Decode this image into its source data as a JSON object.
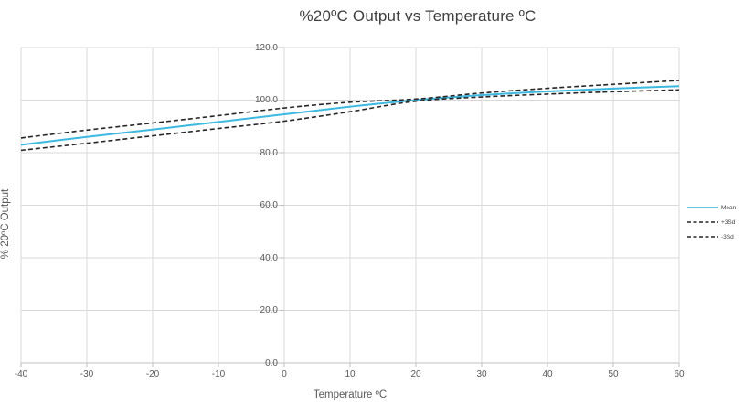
{
  "chart_data": {
    "type": "line",
    "title": "%20ºC Output vs Temperature ºC",
    "xlabel": "Temperature ºC",
    "ylabel": "% 20ºC Output",
    "x": [
      -40,
      -30,
      -20,
      -10,
      0,
      10,
      20,
      30,
      40,
      50,
      60
    ],
    "series": [
      {
        "id": "mean",
        "name": "Mean",
        "color": "#3cb9e1",
        "dash": "",
        "width": 2,
        "values": [
          83.0,
          86.0,
          88.8,
          91.7,
          94.6,
          97.5,
          100.0,
          101.9,
          103.3,
          104.4,
          105.3
        ]
      },
      {
        "id": "plus-3sd",
        "name": "+3Sd",
        "color": "#262626",
        "dash": "5 3",
        "width": 1.6,
        "values": [
          85.6,
          88.6,
          91.3,
          94.1,
          97.0,
          99.2,
          100.4,
          102.7,
          104.5,
          106.0,
          107.5
        ]
      },
      {
        "id": "minus-3sd",
        "name": "-3Sd",
        "color": "#262626",
        "dash": "5 3",
        "width": 1.6,
        "values": [
          80.9,
          83.6,
          86.4,
          89.2,
          92.0,
          95.6,
          99.6,
          101.2,
          102.3,
          103.2,
          103.9
        ]
      }
    ],
    "xlim": [
      -40,
      60
    ],
    "ylim": [
      0,
      120
    ],
    "x_ticks": {
      "values": [
        -40,
        -30,
        -20,
        -10,
        0,
        10,
        20,
        30,
        40,
        50,
        60
      ],
      "labels": [
        "-40",
        "-30",
        "-20",
        "-10",
        "0",
        "10",
        "20",
        "30",
        "40",
        "50",
        "60"
      ]
    },
    "y_ticks": {
      "values": [
        0,
        20,
        40,
        60,
        80,
        100,
        120
      ],
      "labels": [
        "0.0",
        "20.0",
        "40.0",
        "60.0",
        "80.0",
        "100.0",
        "120.0"
      ]
    },
    "grid": true,
    "legend_position": "right",
    "value_axis_at_x": 0
  },
  "colors": {
    "grid": "#d9d9d9",
    "axis": "#bfbfbf",
    "tick_text": "#595959",
    "title_text": "#3f3f3f",
    "mean_line": "#3cb9e1",
    "sd_line": "#262626",
    "background": "#ffffff"
  }
}
